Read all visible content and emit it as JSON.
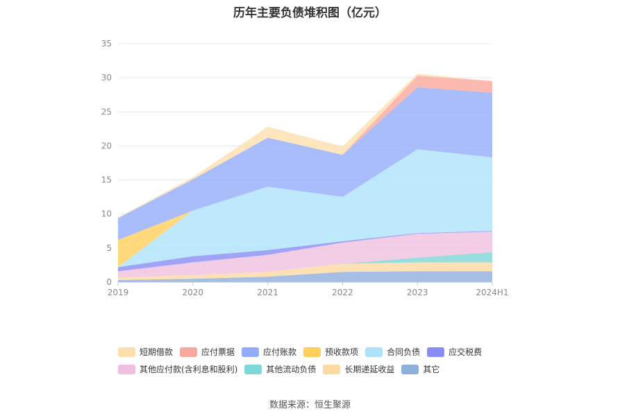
{
  "chart_data": {
    "type": "area",
    "stacked": true,
    "title": "历年主要负债堆积图（亿元）",
    "x": [
      "2019",
      "2020",
      "2021",
      "2022",
      "2023",
      "2024H1"
    ],
    "ylim": [
      0,
      35
    ],
    "yticks": [
      0,
      5,
      10,
      15,
      20,
      25,
      30,
      35
    ],
    "grid": true,
    "legend_position": "bottom",
    "series": [
      {
        "name": "其它",
        "color": "#8eaedc",
        "values": [
          0.3,
          0.5,
          0.8,
          1.5,
          1.6,
          1.6
        ]
      },
      {
        "name": "长期递延收益",
        "color": "#fdd9a2",
        "values": [
          0.4,
          0.5,
          0.7,
          1.2,
          1.3,
          1.3
        ]
      },
      {
        "name": "其他流动负债",
        "color": "#7fd6d6",
        "values": [
          0.0,
          0.0,
          0.0,
          0.0,
          0.7,
          1.5
        ]
      },
      {
        "name": "其他应付款(含利息和股利)",
        "color": "#f0bfe0",
        "values": [
          0.9,
          1.9,
          2.5,
          3.1,
          3.5,
          3.0
        ]
      },
      {
        "name": "应交税费",
        "color": "#8a8cf5",
        "values": [
          0.6,
          0.9,
          0.7,
          0.2,
          0.1,
          0.1
        ]
      },
      {
        "name": "合同负债",
        "color": "#aee2fb",
        "values": [
          0.0,
          6.7,
          9.3,
          6.5,
          12.3,
          10.8
        ]
      },
      {
        "name": "预收款项",
        "color": "#ffcf5a",
        "values": [
          4.0,
          0.0,
          0.0,
          0.0,
          0.0,
          0.0
        ]
      },
      {
        "name": "应付账款",
        "color": "#94acfa",
        "values": [
          3.2,
          4.6,
          7.2,
          6.2,
          9.1,
          9.5
        ]
      },
      {
        "name": "应付票据",
        "color": "#fba79c",
        "values": [
          0.0,
          0.0,
          0.0,
          0.0,
          1.7,
          1.7
        ]
      },
      {
        "name": "短期借款",
        "color": "#fddfad",
        "values": [
          0.1,
          0.3,
          1.6,
          1.2,
          0.3,
          0.0
        ]
      }
    ]
  },
  "legend_rows": [
    [
      "短期借款",
      "应付票据",
      "应付账款",
      "预收款项",
      "合同负债",
      "应交税费"
    ],
    [
      "其他应付款(含利息和股利)",
      "其他流动负债",
      "长期递延收益",
      "其它"
    ]
  ],
  "source_text": "数据来源：恒生聚源"
}
